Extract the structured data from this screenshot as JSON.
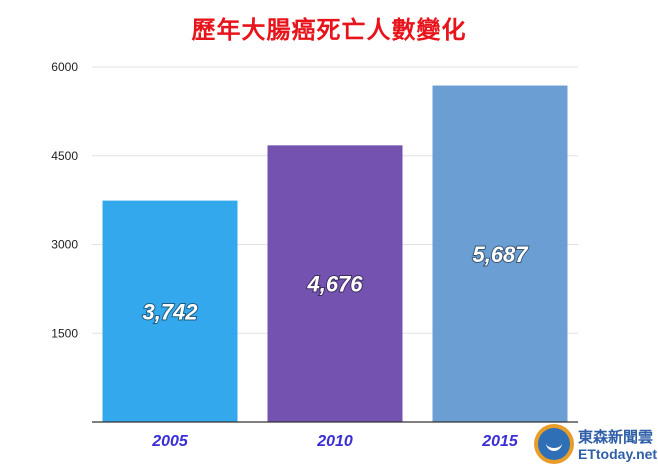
{
  "chart_data": {
    "type": "bar",
    "title": "歷年大腸癌死亡人數變化",
    "categories": [
      "2005",
      "2010",
      "2015"
    ],
    "values": [
      3742,
      4676,
      5687
    ],
    "value_labels": [
      "3,742",
      "4,676",
      "5,687"
    ],
    "yticks": [
      "6000",
      "4500",
      "3000",
      "1500"
    ],
    "ylim": [
      0,
      6000
    ],
    "grid": true,
    "colors": [
      "#33a8ec",
      "#7452b0",
      "#6b9fd3"
    ]
  },
  "brand": {
    "name_cn": "東森新聞雲",
    "name_en": "ETtoday.net"
  }
}
